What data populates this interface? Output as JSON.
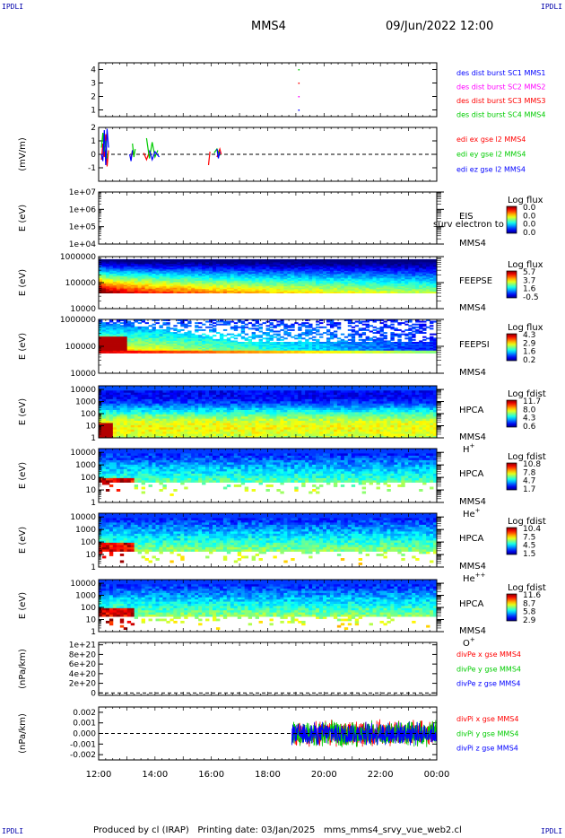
{
  "header": {
    "corner_tl": "IPDLI",
    "corner_tr": "IPDLI",
    "corner_bl": "IPDLI",
    "corner_br": "IPDLI",
    "spacecraft": "MMS4",
    "datetime": "09/Jun/2022 12:00"
  },
  "footer": {
    "text": "Produced by cl (IRAP)   Printing date: 03/Jan/2025   mms_mms4_srvy_vue_web2.cl"
  },
  "colors": {
    "blue": "#0000ff",
    "magenta": "#ff00ff",
    "red": "#ff0000",
    "green": "#00cc00"
  },
  "chart_data": [
    {
      "type": "scatter",
      "id": "des-burst",
      "ylim": [
        0.5,
        4.5
      ],
      "yticks": [
        "1",
        "2",
        "3",
        "4"
      ],
      "ytick_values": [
        1,
        2,
        3,
        4
      ],
      "legend": [
        {
          "text": "des dist burst SC1 MMS1",
          "color": "#0000ff"
        },
        {
          "text": "des dist burst SC2 MMS2",
          "color": "#ff00ff"
        },
        {
          "text": "des dist burst SC3 MMS3",
          "color": "#ff0000"
        },
        {
          "text": "des dist burst SC4 MMS4",
          "color": "#00cc00"
        }
      ],
      "points": [
        {
          "x": 19.1,
          "y": 1,
          "color": "#0000ff"
        },
        {
          "x": 19.1,
          "y": 2,
          "color": "#ff00ff"
        },
        {
          "x": 19.1,
          "y": 3,
          "color": "#ff0000"
        },
        {
          "x": 19.1,
          "y": 4,
          "color": "#00cc00"
        }
      ]
    },
    {
      "type": "line",
      "id": "edi",
      "ylabel": "(mV/m)",
      "ylim": [
        -2,
        2
      ],
      "yticks": [
        "-1",
        "0",
        "1",
        "2"
      ],
      "ytick_values": [
        -1,
        0,
        1,
        2
      ],
      "legend": [
        {
          "text": "edi ex gse l2 MMS4",
          "color": "#ff0000"
        },
        {
          "text": "edi ey gse l2 MMS4",
          "color": "#00cc00"
        },
        {
          "text": "edi ez gse l2 MMS4",
          "color": "#0000ff"
        }
      ],
      "series": [
        {
          "color": "#ff0000",
          "segments": [
            [
              [
                12.1,
                -0.4
              ],
              [
                12.15,
                0.8
              ],
              [
                12.2,
                -0.2
              ],
              [
                12.25,
                1.5
              ],
              [
                12.3,
                -0.9
              ],
              [
                12.35,
                0.3
              ]
            ],
            [
              [
                13.15,
                -0.3
              ],
              [
                13.2,
                0.3
              ],
              [
                13.25,
                -0.1
              ]
            ],
            [
              [
                13.6,
                0.1
              ],
              [
                13.7,
                -0.4
              ],
              [
                13.8,
                0.2
              ]
            ],
            [
              [
                15.9,
                -0.8
              ],
              [
                15.95,
                0.2
              ]
            ],
            [
              [
                16.2,
                -0.2
              ],
              [
                16.3,
                0.4
              ],
              [
                16.35,
                0.0
              ]
            ]
          ]
        },
        {
          "color": "#00cc00",
          "segments": [
            [
              [
                12.1,
                0.5
              ],
              [
                12.15,
                1.6
              ],
              [
                12.2,
                0.2
              ],
              [
                12.25,
                1.0
              ],
              [
                12.3,
                -0.3
              ]
            ],
            [
              [
                13.2,
                0.8
              ],
              [
                13.25,
                -0.2
              ],
              [
                13.3,
                0.4
              ]
            ],
            [
              [
                13.7,
                1.2
              ],
              [
                13.8,
                -0.3
              ],
              [
                13.9,
                0.9
              ],
              [
                14.0,
                -0.2
              ],
              [
                14.1,
                0.3
              ]
            ],
            [
              [
                16.1,
                0.1
              ],
              [
                16.2,
                0.4
              ],
              [
                16.3,
                -0.1
              ]
            ]
          ]
        },
        {
          "color": "#0000ff",
          "segments": [
            [
              [
                12.1,
                0.0
              ],
              [
                12.15,
                -0.5
              ],
              [
                12.2,
                1.8
              ],
              [
                12.25,
                -0.8
              ],
              [
                12.3,
                1.9
              ],
              [
                12.35,
                0.5
              ]
            ],
            [
              [
                13.1,
                0.0
              ],
              [
                13.15,
                -0.5
              ],
              [
                13.2,
                0.3
              ]
            ],
            [
              [
                13.8,
                0.3
              ],
              [
                13.9,
                -0.4
              ],
              [
                14.0,
                0.2
              ],
              [
                14.15,
                -0.2
              ]
            ],
            [
              [
                16.2,
                0.4
              ],
              [
                16.25,
                -0.3
              ],
              [
                16.3,
                0.2
              ]
            ]
          ]
        }
      ],
      "zero_line": true
    },
    {
      "type": "heatmap",
      "id": "eis",
      "ylabel": "E (eV)",
      "yticks": [
        "1e+04",
        "1e+05",
        "1e+06",
        "1e+07"
      ],
      "ytick_values": [
        4,
        5,
        6,
        7
      ],
      "ylim_log10": [
        4,
        7
      ],
      "instrument": "EIS",
      "instrument_overlay": "surv electron to",
      "spacecraft": "MMS4",
      "species": "",
      "colorbar_title": "Log flux",
      "colorbar_labels": [
        "0.0",
        "0.0",
        "0.0",
        "0.0"
      ],
      "empty": true
    },
    {
      "type": "heatmap",
      "id": "feepse",
      "ylabel": "E (eV)",
      "yticks": [
        "10000",
        "100000",
        "1000000"
      ],
      "ytick_values": [
        4,
        5,
        6
      ],
      "ylim_log10": [
        4,
        6
      ],
      "data_range_log10": [
        4.6,
        5.9
      ],
      "instrument": "FEEPSE",
      "spacecraft": "MMS4",
      "species": "",
      "colorbar_title": "Log flux",
      "colorbar_labels": [
        "5.7",
        "3.7",
        "1.6",
        "-0.5"
      ],
      "profile": "feepse"
    },
    {
      "type": "heatmap",
      "id": "feepsi",
      "ylabel": "E (eV)",
      "yticks": [
        "10000",
        "100000",
        "1000000"
      ],
      "ytick_values": [
        4,
        5,
        6
      ],
      "ylim_log10": [
        4,
        6
      ],
      "data_range_log10": [
        4.75,
        6.0
      ],
      "instrument": "FEEPSI",
      "spacecraft": "MMS4",
      "species": "",
      "colorbar_title": "Log flux",
      "colorbar_labels": [
        "4.3",
        "2.9",
        "1.6",
        "0.2"
      ],
      "profile": "feepsi"
    },
    {
      "type": "heatmap",
      "id": "hpca-h",
      "ylabel": "E (eV)",
      "yticks": [
        "1",
        "10",
        "100",
        "1000",
        "10000"
      ],
      "ytick_values": [
        0,
        1,
        2,
        3,
        4
      ],
      "ylim_log10": [
        0,
        4.3
      ],
      "instrument": "HPCA",
      "spacecraft": "MMS4",
      "species": "H",
      "species_sup": "+",
      "colorbar_title": "Log fdist",
      "colorbar_labels": [
        "11.7",
        "8.0",
        "4.3",
        "0.6"
      ],
      "profile": "hpca-h"
    },
    {
      "type": "heatmap",
      "id": "hpca-he",
      "ylabel": "E (eV)",
      "yticks": [
        "1",
        "10",
        "100",
        "1000",
        "10000"
      ],
      "ytick_values": [
        0,
        1,
        2,
        3,
        4
      ],
      "ylim_log10": [
        0,
        4.3
      ],
      "instrument": "HPCA",
      "spacecraft": "MMS4",
      "species": "He",
      "species_sup": "+",
      "colorbar_title": "Log fdist",
      "colorbar_labels": [
        "10.8",
        "7.8",
        "4.7",
        "1.7"
      ],
      "profile": "hpca-he"
    },
    {
      "type": "heatmap",
      "id": "hpca-hepp",
      "ylabel": "E (eV)",
      "yticks": [
        "1",
        "10",
        "100",
        "1000",
        "10000"
      ],
      "ytick_values": [
        0,
        1,
        2,
        3,
        4
      ],
      "ylim_log10": [
        0,
        4.3
      ],
      "instrument": "HPCA",
      "spacecraft": "MMS4",
      "species": "He",
      "species_sup": "++",
      "colorbar_title": "Log fdist",
      "colorbar_labels": [
        "10.4",
        "7.5",
        "4.5",
        "1.5"
      ],
      "profile": "hpca-hepp"
    },
    {
      "type": "heatmap",
      "id": "hpca-o",
      "ylabel": "E (eV)",
      "yticks": [
        "1",
        "10",
        "100",
        "1000",
        "10000"
      ],
      "ytick_values": [
        0,
        1,
        2,
        3,
        4
      ],
      "ylim_log10": [
        0,
        4.3
      ],
      "instrument": "HPCA",
      "spacecraft": "MMS4",
      "species": "O",
      "species_sup": "+",
      "colorbar_title": "Log fdist",
      "colorbar_labels": [
        "11.6",
        "8.7",
        "5.8",
        "2.9"
      ],
      "profile": "hpca-o"
    },
    {
      "type": "line",
      "id": "divpe",
      "ylabel": "(nPa/km)",
      "ylim": [
        -5e+19,
        1.05e+21
      ],
      "yticks": [
        "0",
        "2e+20",
        "4e+20",
        "6e+20",
        "8e+20",
        "1e+21"
      ],
      "ytick_values": [
        0,
        2e+20,
        4e+20,
        6e+20,
        8e+20,
        1e+21
      ],
      "legend": [
        {
          "text": "divPe x gse MMS4",
          "color": "#ff0000"
        },
        {
          "text": "divPe y gse MMS4",
          "color": "#00cc00"
        },
        {
          "text": "divPe z gse MMS4",
          "color": "#0000ff"
        }
      ],
      "series": [],
      "zero_line": true
    },
    {
      "type": "line",
      "id": "divpi",
      "ylabel": "(nPa/km)",
      "ylim": [
        -0.0025,
        0.0025
      ],
      "yticks": [
        "-0.002",
        "-0.001",
        "0.000",
        "0.001",
        "0.002"
      ],
      "ytick_values": [
        -0.002,
        -0.001,
        0,
        0.001,
        0.002
      ],
      "legend": [
        {
          "text": "divPi x gse MMS4",
          "color": "#ff0000"
        },
        {
          "text": "divPi y gse MMS4",
          "color": "#00cc00"
        },
        {
          "text": "divPi z gse MMS4",
          "color": "#0000ff"
        }
      ],
      "noise_start": 18.85,
      "noise_end": 24.0,
      "noise_amplitude": 0.0016,
      "zero_line": true
    }
  ],
  "time_axis": {
    "ticks": [
      "12:00",
      "14:00",
      "16:00",
      "18:00",
      "20:00",
      "22:00",
      "00:00"
    ],
    "tick_hours": [
      12,
      14,
      16,
      18,
      20,
      22,
      24
    ],
    "xlim": [
      12,
      24
    ]
  }
}
